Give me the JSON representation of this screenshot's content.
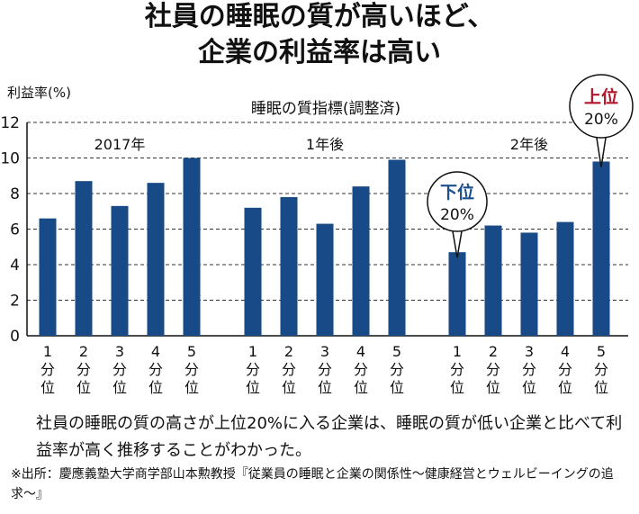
{
  "title_line1": "社員の睡眠の質が高いほど、",
  "title_line2": "企業の利益率は高い",
  "chart_data": {
    "type": "bar",
    "ylabel": "利益率(%)",
    "xlabel": "睡眠の質指標(調整済)",
    "ylim": [
      0,
      12
    ],
    "yticks": [
      0,
      2,
      4,
      6,
      8,
      10,
      12
    ],
    "grid": true,
    "categories": [
      "1\n分\n位",
      "2\n分\n位",
      "3\n分\n位",
      "4\n分\n位",
      "5\n分\n位"
    ],
    "groups": [
      {
        "label": "2017年",
        "values": [
          6.6,
          8.7,
          7.3,
          8.6,
          10.0
        ]
      },
      {
        "label": "1年後",
        "values": [
          7.2,
          7.8,
          6.3,
          8.4,
          9.9
        ]
      },
      {
        "label": "2年後",
        "values": [
          4.7,
          6.2,
          5.8,
          6.4,
          9.8
        ]
      }
    ],
    "annotations": [
      {
        "group": 2,
        "index": 0,
        "line1": "下位",
        "line2": "20%",
        "color": "#1a4f8b"
      },
      {
        "group": 2,
        "index": 4,
        "line1": "上位",
        "line2": "20%",
        "color": "#b2162a"
      }
    ],
    "bar_color": "#174a86"
  },
  "caption": "社員の睡眠の質の高さが上位20%に入る企業は、睡眠の質が低い企業と比べて利益率が高く推移することがわかった。",
  "source": "※出所：慶應義塾大学商学部山本勲教授『従業員の睡眠と企業の関係性〜健康経営とウェルビーイングの追求〜』"
}
